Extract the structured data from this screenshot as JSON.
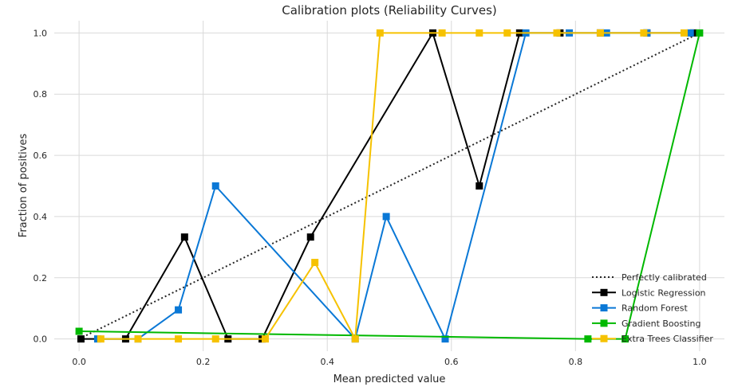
{
  "chart_data": {
    "type": "line",
    "title": "Calibration plots (Reliability Curves)",
    "xlabel": "Mean predicted value",
    "ylabel": "Fraction of positives",
    "xlim": [
      -0.04,
      1.04
    ],
    "ylim": [
      -0.04,
      1.04
    ],
    "xticks": [
      "0.0",
      "0.2",
      "0.4",
      "0.6",
      "0.8",
      "1.0"
    ],
    "yticks": [
      "0.0",
      "0.2",
      "0.4",
      "0.6",
      "0.8",
      "1.0"
    ],
    "grid": true,
    "legend_position": "bottom-right",
    "series": [
      {
        "name": "Perfectly calibrated",
        "color": "#262626",
        "style": "dotted",
        "marker": false,
        "x": [
          0,
          1
        ],
        "y": [
          0,
          1
        ]
      },
      {
        "name": "Logistic Regression",
        "color": "#000000",
        "style": "solid",
        "marker": true,
        "x": [
          0.003,
          0.075,
          0.17,
          0.24,
          0.295,
          0.373,
          0.57,
          0.645,
          0.71,
          0.775,
          0.84,
          0.915,
          0.99
        ],
        "y": [
          0.0,
          0.0,
          0.333,
          0.0,
          0.0,
          0.333,
          1.0,
          0.5,
          1.0,
          1.0,
          1.0,
          1.0,
          1.0
        ]
      },
      {
        "name": "Random Forest",
        "color": "#0a78d6",
        "style": "solid",
        "marker": true,
        "x": [
          0.03,
          0.095,
          0.16,
          0.22,
          0.445,
          0.495,
          0.59,
          0.72,
          0.79,
          0.85,
          0.915,
          0.985
        ],
        "y": [
          0.0,
          0.0,
          0.095,
          0.5,
          0.0,
          0.4,
          0.0,
          1.0,
          1.0,
          1.0,
          1.0,
          1.0
        ]
      },
      {
        "name": "Gradient Boosting",
        "color": "#00b800",
        "style": "solid",
        "marker": true,
        "x": [
          0.0,
          0.82,
          0.88,
          1.0
        ],
        "y": [
          0.025,
          0.0,
          0.0,
          1.0
        ]
      },
      {
        "name": "Extra Trees Classifier",
        "color": "#f6c200",
        "style": "solid",
        "marker": true,
        "x": [
          0.035,
          0.095,
          0.16,
          0.22,
          0.3,
          0.38,
          0.445,
          0.485,
          0.585,
          0.645,
          0.69,
          0.77,
          0.84,
          0.91,
          0.975
        ],
        "y": [
          0.0,
          0.0,
          0.0,
          0.0,
          0.0,
          0.25,
          0.0,
          1.0,
          1.0,
          1.0,
          1.0,
          1.0,
          1.0,
          1.0,
          1.0
        ]
      }
    ]
  }
}
